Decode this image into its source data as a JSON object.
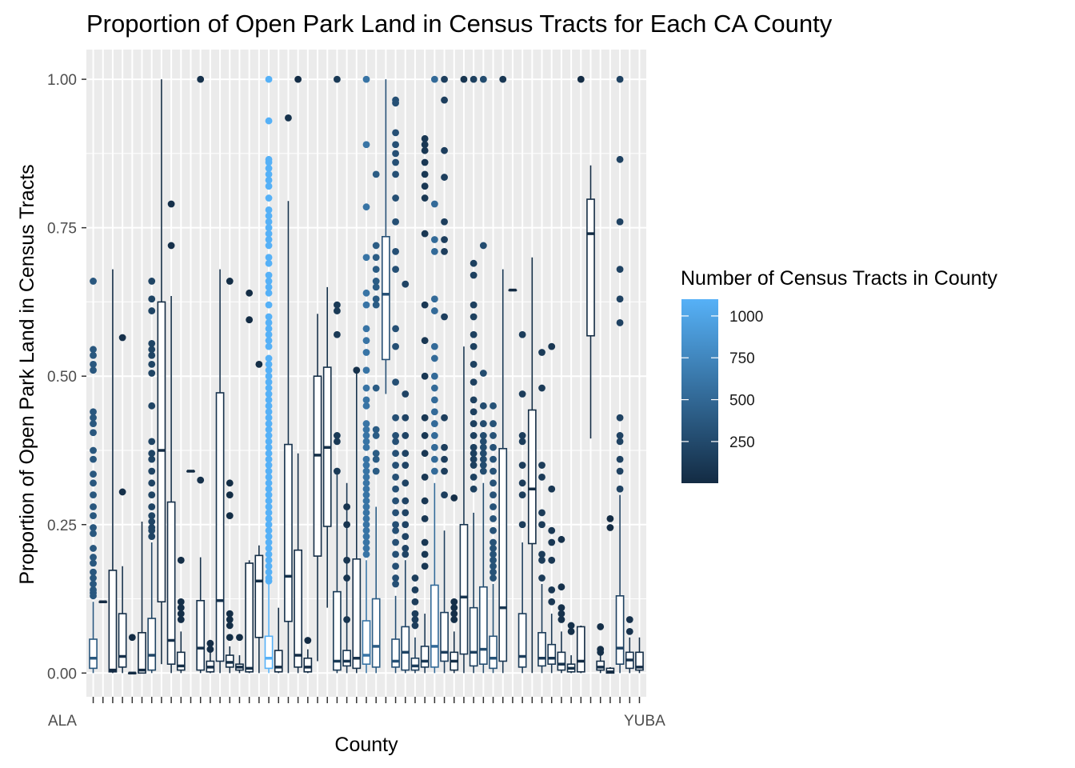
{
  "chart_data": {
    "type": "boxplot",
    "title": "Proportion of Open Park Land in Census Tracts for Each CA County",
    "xlabel": "County",
    "ylabel": "Proportion of Open Park Land in Census Tracts",
    "ylim": [
      -0.04,
      1.05
    ],
    "y_ticks": [
      "0.00",
      "0.25",
      "0.50",
      "0.75",
      "1.00"
    ],
    "x_tick_labels_overlapping": "ALAMEDA ... YUBA (58 overlapping county labels)",
    "first_x_label": "ALA",
    "last_x_label": "YUBA",
    "grid": true,
    "panel_background": "#ebebeb",
    "legend": {
      "title": "Number of Census Tracts in County",
      "position": "right",
      "breaks": [
        "1000",
        "750",
        "500",
        "250"
      ],
      "break_values": [
        1000,
        750,
        500,
        250
      ],
      "range": [
        1,
        1100
      ],
      "color_low": "#132B43",
      "color_high": "#56B1F7"
    },
    "series": [
      {
        "n": 360,
        "q1": 0.008,
        "median": 0.025,
        "q3": 0.057,
        "lo": 0.0,
        "hi": 0.12,
        "out": [
          0.66,
          0.545,
          0.535,
          0.52,
          0.51,
          0.44,
          0.43,
          0.42,
          0.405,
          0.375,
          0.36,
          0.335,
          0.32,
          0.3,
          0.28,
          0.265,
          0.245,
          0.235,
          0.21,
          0.195,
          0.185,
          0.17,
          0.16,
          0.15,
          0.14,
          0.135,
          0.13
        ]
      },
      {
        "n": 1,
        "q1": 0.12,
        "median": 0.12,
        "q3": 0.12,
        "lo": 0.12,
        "hi": 0.12,
        "out": []
      },
      {
        "n": 5,
        "q1": 0.002,
        "median": 0.005,
        "q3": 0.173,
        "lo": 0.0,
        "hi": 0.68,
        "out": []
      },
      {
        "n": 44,
        "q1": 0.01,
        "median": 0.028,
        "q3": 0.1,
        "lo": 0.0,
        "hi": 0.18,
        "out": [
          0.565,
          0.305
        ]
      },
      {
        "n": 9,
        "q1": 0.0,
        "median": 0.0,
        "q3": 0.0,
        "lo": 0.0,
        "hi": 0.0,
        "out": [
          0.06
        ]
      },
      {
        "n": 10,
        "q1": 0.0,
        "median": 0.005,
        "q3": 0.068,
        "lo": 0.0,
        "hi": 0.255,
        "out": []
      },
      {
        "n": 205,
        "q1": 0.005,
        "median": 0.03,
        "q3": 0.092,
        "lo": 0.0,
        "hi": 0.22,
        "out": [
          0.66,
          0.63,
          0.61,
          0.555,
          0.545,
          0.535,
          0.52,
          0.505,
          0.45,
          0.39,
          0.37,
          0.36,
          0.34,
          0.32,
          0.3,
          0.28,
          0.265,
          0.255,
          0.245,
          0.24,
          0.23
        ]
      },
      {
        "n": 10,
        "q1": 0.12,
        "median": 0.375,
        "q3": 0.625,
        "lo": 0.015,
        "hi": 1.0,
        "out": []
      },
      {
        "n": 45,
        "q1": 0.015,
        "median": 0.055,
        "q3": 0.288,
        "lo": 0.0,
        "hi": 0.635,
        "out": [
          0.79,
          0.72
        ]
      },
      {
        "n": 24,
        "q1": 0.005,
        "median": 0.012,
        "q3": 0.035,
        "lo": 0.0,
        "hi": 0.07,
        "out": [
          0.19,
          0.12,
          0.11,
          0.1,
          0.09
        ]
      },
      {
        "n": 1,
        "q1": 0.34,
        "median": 0.34,
        "q3": 0.34,
        "lo": 0.34,
        "hi": 0.34,
        "out": []
      },
      {
        "n": 50,
        "q1": 0.005,
        "median": 0.042,
        "q3": 0.122,
        "lo": 0.0,
        "hi": 0.195,
        "out": [
          1.0,
          0.325
        ]
      },
      {
        "n": 18,
        "q1": 0.002,
        "median": 0.01,
        "q3": 0.02,
        "lo": 0.0,
        "hi": 0.035,
        "out": [
          0.05,
          0.04
        ]
      },
      {
        "n": 60,
        "q1": 0.02,
        "median": 0.122,
        "q3": 0.472,
        "lo": 0.0,
        "hi": 0.68,
        "out": []
      },
      {
        "n": 22,
        "q1": 0.01,
        "median": 0.018,
        "q3": 0.03,
        "lo": 0.0,
        "hi": 0.045,
        "out": [
          0.66,
          0.32,
          0.3,
          0.265,
          0.1,
          0.09,
          0.08,
          0.06
        ]
      },
      {
        "n": 15,
        "q1": 0.005,
        "median": 0.01,
        "q3": 0.015,
        "lo": 0.0,
        "hi": 0.03,
        "out": [
          0.06
        ]
      },
      {
        "n": 16,
        "q1": 0.002,
        "median": 0.008,
        "q3": 0.185,
        "lo": 0.0,
        "hi": 0.19,
        "out": [
          0.64,
          0.595
        ]
      },
      {
        "n": 22,
        "q1": 0.06,
        "median": 0.155,
        "q3": 0.198,
        "lo": 0.0,
        "hi": 0.215,
        "out": [
          0.52
        ]
      },
      {
        "n": 1100,
        "q1": 0.008,
        "median": 0.025,
        "q3": 0.062,
        "lo": 0.0,
        "hi": 0.15,
        "out": [
          1.0,
          0.93,
          0.865,
          0.86,
          0.85,
          0.84,
          0.83,
          0.82,
          0.8,
          0.78,
          0.77,
          0.76,
          0.75,
          0.74,
          0.73,
          0.72,
          0.7,
          0.69,
          0.67,
          0.66,
          0.65,
          0.64,
          0.62,
          0.6,
          0.59,
          0.58,
          0.57,
          0.56,
          0.55,
          0.53,
          0.52,
          0.51,
          0.5,
          0.49,
          0.48,
          0.47,
          0.46,
          0.45,
          0.44,
          0.43,
          0.42,
          0.41,
          0.4,
          0.39,
          0.38,
          0.37,
          0.36,
          0.35,
          0.34,
          0.33,
          0.32,
          0.31,
          0.3,
          0.29,
          0.28,
          0.27,
          0.26,
          0.25,
          0.24,
          0.23,
          0.22,
          0.21,
          0.2,
          0.19,
          0.18,
          0.17,
          0.16,
          0.155
        ]
      },
      {
        "n": 10,
        "q1": 0.002,
        "median": 0.01,
        "q3": 0.038,
        "lo": 0.0,
        "hi": 0.11,
        "out": []
      },
      {
        "n": 56,
        "q1": 0.087,
        "median": 0.163,
        "q3": 0.385,
        "lo": 0.0,
        "hi": 0.795,
        "out": [
          0.935
        ]
      },
      {
        "n": 18,
        "q1": 0.01,
        "median": 0.03,
        "q3": 0.207,
        "lo": 0.0,
        "hi": 0.37,
        "out": [
          1.0
        ]
      },
      {
        "n": 5,
        "q1": 0.002,
        "median": 0.01,
        "q3": 0.025,
        "lo": 0.0,
        "hi": 0.04,
        "out": [
          0.055
        ]
      },
      {
        "n": 18,
        "q1": 0.197,
        "median": 0.367,
        "q3": 0.5,
        "lo": 0.02,
        "hi": 0.605,
        "out": []
      },
      {
        "n": 40,
        "q1": 0.247,
        "median": 0.38,
        "q3": 0.515,
        "lo": 0.11,
        "hi": 0.65,
        "out": []
      },
      {
        "n": 120,
        "q1": 0.005,
        "median": 0.02,
        "q3": 0.137,
        "lo": 0.0,
        "hi": 0.34,
        "out": [
          1.0,
          0.62,
          0.61,
          0.57,
          0.4,
          0.39,
          0.34
        ]
      },
      {
        "n": 80,
        "q1": 0.012,
        "median": 0.02,
        "q3": 0.038,
        "lo": 0.0,
        "hi": 0.32,
        "out": [
          0.28,
          0.25,
          0.19,
          0.16,
          0.09
        ]
      },
      {
        "n": 50,
        "q1": 0.008,
        "median": 0.025,
        "q3": 0.192,
        "lo": 0.0,
        "hi": 0.51,
        "out": [
          0.51
        ]
      },
      {
        "n": 600,
        "q1": 0.015,
        "median": 0.03,
        "q3": 0.088,
        "lo": 0.0,
        "hi": 0.19,
        "out": [
          1.0,
          0.89,
          0.785,
          0.7,
          0.64,
          0.62,
          0.58,
          0.56,
          0.54,
          0.51,
          0.48,
          0.46,
          0.45,
          0.42,
          0.41,
          0.4,
          0.39,
          0.38,
          0.36,
          0.35,
          0.34,
          0.33,
          0.32,
          0.31,
          0.3,
          0.29,
          0.28,
          0.27,
          0.26,
          0.25,
          0.24,
          0.23,
          0.22,
          0.21,
          0.2
        ]
      },
      {
        "n": 400,
        "q1": 0.01,
        "median": 0.045,
        "q3": 0.125,
        "lo": 0.0,
        "hi": 0.28,
        "out": [
          0.84,
          0.72,
          0.7,
          0.68,
          0.66,
          0.65,
          0.63,
          0.62,
          0.48,
          0.41,
          0.4,
          0.37,
          0.36,
          0.34
        ]
      },
      {
        "n": 300,
        "q1": 0.528,
        "median": 0.638,
        "q3": 0.735,
        "lo": 0.47,
        "hi": 1.0,
        "out": []
      },
      {
        "n": 300,
        "q1": 0.01,
        "median": 0.02,
        "q3": 0.057,
        "lo": 0.0,
        "hi": 0.13,
        "out": [
          0.965,
          0.96,
          0.91,
          0.89,
          0.875,
          0.86,
          0.84,
          0.8,
          0.76,
          0.71,
          0.68,
          0.58,
          0.55,
          0.49,
          0.43,
          0.4,
          0.39,
          0.37,
          0.35,
          0.33,
          0.31,
          0.29,
          0.27,
          0.25,
          0.24,
          0.22,
          0.2,
          0.18,
          0.16,
          0.15
        ]
      },
      {
        "n": 200,
        "q1": 0.005,
        "median": 0.035,
        "q3": 0.078,
        "lo": 0.0,
        "hi": 0.19,
        "out": [
          0.655,
          0.47,
          0.43,
          0.4,
          0.37,
          0.35,
          0.32,
          0.29,
          0.27,
          0.25,
          0.23,
          0.21,
          0.2
        ]
      },
      {
        "n": 150,
        "q1": 0.005,
        "median": 0.012,
        "q3": 0.025,
        "lo": 0.0,
        "hi": 0.06,
        "out": [
          0.16,
          0.14,
          0.12,
          0.1,
          0.09,
          0.08
        ]
      },
      {
        "n": 100,
        "q1": 0.01,
        "median": 0.02,
        "q3": 0.045,
        "lo": 0.0,
        "hi": 0.1,
        "out": [
          0.9,
          0.89,
          0.88,
          0.86,
          0.84,
          0.82,
          0.8,
          0.74,
          0.62,
          0.56,
          0.5,
          0.43,
          0.4,
          0.37,
          0.33,
          0.29,
          0.26,
          0.22,
          0.2,
          0.18
        ]
      },
      {
        "n": 520,
        "q1": 0.01,
        "median": 0.045,
        "q3": 0.148,
        "lo": 0.0,
        "hi": 0.32,
        "out": [
          1.0,
          0.79,
          0.73,
          0.71,
          0.63,
          0.61,
          0.55,
          0.53,
          0.5,
          0.48,
          0.46,
          0.44,
          0.42,
          0.4,
          0.38,
          0.36,
          0.34
        ]
      },
      {
        "n": 160,
        "q1": 0.02,
        "median": 0.035,
        "q3": 0.102,
        "lo": 0.0,
        "hi": 0.24,
        "out": [
          1.0,
          0.965,
          0.88,
          0.835,
          0.76,
          0.73,
          0.71,
          0.6,
          0.43,
          0.38,
          0.36,
          0.34,
          0.3
        ]
      },
      {
        "n": 30,
        "q1": 0.005,
        "median": 0.02,
        "q3": 0.035,
        "lo": 0.0,
        "hi": 0.07,
        "out": [
          0.295,
          0.12,
          0.11,
          0.1,
          0.09
        ]
      },
      {
        "n": 80,
        "q1": 0.032,
        "median": 0.128,
        "q3": 0.25,
        "lo": 0.0,
        "hi": 0.55,
        "out": [
          1.0
        ]
      },
      {
        "n": 170,
        "q1": 0.012,
        "median": 0.035,
        "q3": 0.11,
        "lo": 0.0,
        "hi": 0.27,
        "out": [
          1.0,
          0.69,
          0.67,
          0.62,
          0.6,
          0.57,
          0.55,
          0.52,
          0.49,
          0.46,
          0.44,
          0.42,
          0.4,
          0.38,
          0.37,
          0.36,
          0.35,
          0.33,
          0.31
        ]
      },
      {
        "n": 270,
        "q1": 0.015,
        "median": 0.04,
        "q3": 0.145,
        "lo": 0.0,
        "hi": 0.32,
        "out": [
          1.0,
          0.72,
          0.505,
          0.45,
          0.42,
          0.4,
          0.39,
          0.38,
          0.37,
          0.36,
          0.35,
          0.34
        ]
      },
      {
        "n": 320,
        "q1": 0.008,
        "median": 0.025,
        "q3": 0.062,
        "lo": 0.0,
        "hi": 0.15,
        "out": [
          0.45,
          0.42,
          0.4,
          0.38,
          0.36,
          0.34,
          0.32,
          0.3,
          0.28,
          0.26,
          0.24,
          0.22,
          0.21,
          0.2,
          0.19,
          0.18,
          0.17,
          0.16
        ]
      },
      {
        "n": 100,
        "q1": 0.02,
        "median": 0.11,
        "q3": 0.378,
        "lo": 0.0,
        "hi": 0.68,
        "out": [
          1.0
        ]
      },
      {
        "n": 1,
        "q1": 0.645,
        "median": 0.645,
        "q3": 0.645,
        "lo": 0.645,
        "hi": 0.645,
        "out": []
      },
      {
        "n": 150,
        "q1": 0.01,
        "median": 0.028,
        "q3": 0.1,
        "lo": 0.0,
        "hi": 0.22,
        "out": [
          0.57,
          0.47,
          0.4,
          0.39,
          0.35,
          0.32,
          0.3,
          0.25
        ]
      },
      {
        "n": 6,
        "q1": 0.218,
        "median": 0.31,
        "q3": 0.443,
        "lo": 0.0,
        "hi": 0.7,
        "out": []
      },
      {
        "n": 130,
        "q1": 0.012,
        "median": 0.025,
        "q3": 0.068,
        "lo": 0.0,
        "hi": 0.15,
        "out": [
          0.54,
          0.48,
          0.35,
          0.33,
          0.27,
          0.25,
          0.2,
          0.19,
          0.16
        ]
      },
      {
        "n": 100,
        "q1": 0.015,
        "median": 0.025,
        "q3": 0.048,
        "lo": 0.0,
        "hi": 0.1,
        "out": [
          0.55,
          0.31,
          0.24,
          0.22,
          0.19,
          0.14,
          0.12
        ]
      },
      {
        "n": 50,
        "q1": 0.005,
        "median": 0.015,
        "q3": 0.035,
        "lo": 0.0,
        "hi": 0.07,
        "out": [
          0.225,
          0.145,
          0.11,
          0.1,
          0.09
        ]
      },
      {
        "n": 40,
        "q1": 0.002,
        "median": 0.008,
        "q3": 0.015,
        "lo": 0.0,
        "hi": 0.03,
        "out": [
          0.08,
          0.07
        ]
      },
      {
        "n": 10,
        "q1": 0.002,
        "median": 0.02,
        "q3": 0.078,
        "lo": 0.0,
        "hi": 0.08,
        "out": [
          1.0
        ]
      },
      {
        "n": 8,
        "q1": 0.568,
        "median": 0.74,
        "q3": 0.798,
        "lo": 0.395,
        "hi": 0.855,
        "out": []
      },
      {
        "n": 30,
        "q1": 0.005,
        "median": 0.01,
        "q3": 0.02,
        "lo": 0.0,
        "hi": 0.03,
        "out": [
          0.078,
          0.04,
          0.035
        ]
      },
      {
        "n": 10,
        "q1": 0.0,
        "median": 0.002,
        "q3": 0.008,
        "lo": 0.0,
        "hi": 0.01,
        "out": [
          0.26,
          0.245
        ]
      },
      {
        "n": 190,
        "q1": 0.015,
        "median": 0.042,
        "q3": 0.13,
        "lo": 0.0,
        "hi": 0.3,
        "out": [
          1.0,
          0.865,
          0.76,
          0.68,
          0.63,
          0.59,
          0.43,
          0.4,
          0.39,
          0.36,
          0.34,
          0.31
        ]
      },
      {
        "n": 60,
        "q1": 0.008,
        "median": 0.022,
        "q3": 0.035,
        "lo": 0.0,
        "hi": 0.06,
        "out": [
          0.09,
          0.07
        ]
      },
      {
        "n": 20,
        "q1": 0.005,
        "median": 0.01,
        "q3": 0.035,
        "lo": 0.0,
        "hi": 0.06,
        "out": []
      }
    ]
  }
}
